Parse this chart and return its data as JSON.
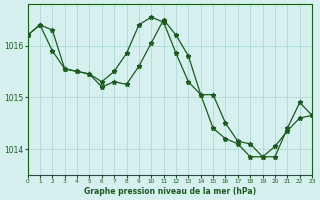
{
  "title": "Graphe pression niveau de la mer (hPa)",
  "background_color": "#d6f0f0",
  "line_color": "#1a5c1a",
  "grid_color": "#aad4d4",
  "xlim": [
    0,
    23
  ],
  "ylim": [
    1013.5,
    1016.8
  ],
  "yticks": [
    1014,
    1015,
    1016
  ],
  "xticks": [
    0,
    1,
    2,
    3,
    4,
    5,
    6,
    7,
    8,
    9,
    10,
    11,
    12,
    13,
    14,
    15,
    16,
    17,
    18,
    19,
    20,
    21,
    22,
    23
  ],
  "series1_x": [
    0,
    1,
    2,
    3,
    4,
    5,
    6,
    7,
    8,
    9,
    10,
    11,
    12,
    13,
    14,
    15,
    16,
    17,
    18,
    19,
    20,
    21,
    22,
    23
  ],
  "series1_y": [
    1016.2,
    1016.4,
    1015.9,
    1015.55,
    1015.5,
    1015.45,
    1015.2,
    1015.3,
    1015.25,
    1015.6,
    1016.05,
    1016.5,
    1016.2,
    1015.8,
    1015.05,
    1014.4,
    1014.2,
    1014.1,
    1013.85,
    1013.85,
    1014.05,
    1014.35,
    1014.6,
    1014.65
  ],
  "series2_x": [
    0,
    1,
    2,
    3,
    4,
    5,
    6,
    7,
    8,
    9,
    10,
    11,
    12,
    13,
    14,
    15,
    16,
    17,
    18,
    19,
    20,
    21,
    22,
    23
  ],
  "series2_y": [
    1016.2,
    1016.4,
    1016.3,
    1015.55,
    1015.5,
    1015.45,
    1015.3,
    1015.5,
    1015.85,
    1016.4,
    1016.55,
    1016.45,
    1015.85,
    1015.3,
    1015.05,
    1015.05,
    1014.5,
    1014.15,
    1014.1,
    1013.85,
    1013.85,
    1014.4,
    1014.9,
    1014.65
  ]
}
